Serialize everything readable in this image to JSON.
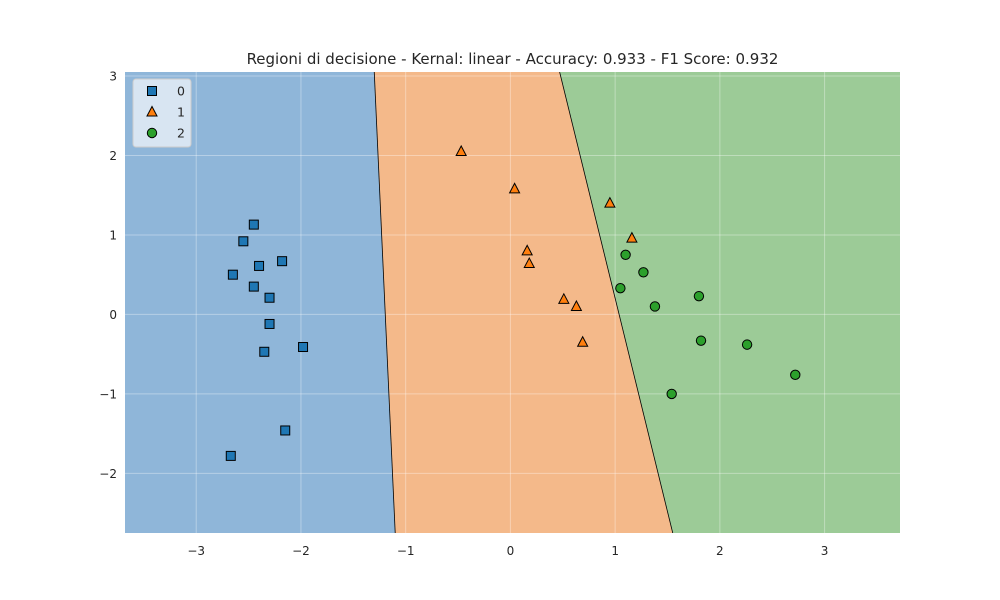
{
  "chart_data": {
    "type": "scatter",
    "title": "Regioni di decisione - Kernal: linear - Accuracy:  0.933 - F1 Score:  0.932",
    "xlabel": "",
    "ylabel": "",
    "xlim": [
      -3.68,
      3.72
    ],
    "ylim": [
      -2.75,
      3.05
    ],
    "x_ticks": [
      -3,
      -2,
      -1,
      0,
      1,
      2,
      3
    ],
    "y_ticks": [
      -2,
      -1,
      0,
      1,
      2,
      3
    ],
    "x_tick_labels": [
      "−3",
      "−2",
      "−1",
      "0",
      "1",
      "2",
      "3"
    ],
    "y_tick_labels": [
      "−2",
      "−1",
      "0",
      "1",
      "2",
      "3"
    ],
    "grid": true,
    "legend_position": "top-left",
    "regions": [
      {
        "class": "0",
        "color": "#8fb6d9",
        "polygon": [
          [
            -3.68,
            -2.75
          ],
          [
            -1.1,
            -2.75
          ],
          [
            -1.3,
            3.05
          ],
          [
            -3.68,
            3.05
          ]
        ]
      },
      {
        "class": "1",
        "color": "#f4b98a",
        "polygon": [
          [
            -1.1,
            -2.75
          ],
          [
            1.55,
            -2.75
          ],
          [
            0.47,
            3.05
          ],
          [
            -1.3,
            3.05
          ]
        ]
      },
      {
        "class": "2",
        "color": "#9ccb97",
        "polygon": [
          [
            1.55,
            -2.75
          ],
          [
            3.72,
            -2.75
          ],
          [
            3.72,
            3.05
          ],
          [
            0.47,
            3.05
          ]
        ]
      }
    ],
    "boundaries": [
      [
        [
          -1.1,
          -2.75
        ],
        [
          -1.3,
          3.05
        ]
      ],
      [
        [
          1.55,
          -2.75
        ],
        [
          0.47,
          3.05
        ]
      ]
    ],
    "series": [
      {
        "name": "0",
        "marker": "square",
        "color": "#1f77b4",
        "points": [
          [
            -2.45,
            1.13
          ],
          [
            -2.55,
            0.92
          ],
          [
            -2.4,
            0.61
          ],
          [
            -2.65,
            0.5
          ],
          [
            -2.18,
            0.67
          ],
          [
            -2.45,
            0.35
          ],
          [
            -2.3,
            0.21
          ],
          [
            -2.3,
            -0.12
          ],
          [
            -2.35,
            -0.47
          ],
          [
            -1.98,
            -0.41
          ],
          [
            -2.15,
            -1.46
          ],
          [
            -2.67,
            -1.78
          ]
        ]
      },
      {
        "name": "1",
        "marker": "triangle",
        "color": "#ff7f0e",
        "points": [
          [
            -0.47,
            2.05
          ],
          [
            0.04,
            1.58
          ],
          [
            0.95,
            1.4
          ],
          [
            1.16,
            0.96
          ],
          [
            0.16,
            0.8
          ],
          [
            0.18,
            0.64
          ],
          [
            0.51,
            0.19
          ],
          [
            0.63,
            0.1
          ],
          [
            0.69,
            -0.35
          ]
        ]
      },
      {
        "name": "2",
        "marker": "circle",
        "color": "#2ca02c",
        "points": [
          [
            1.1,
            0.75
          ],
          [
            1.27,
            0.53
          ],
          [
            1.05,
            0.33
          ],
          [
            1.38,
            0.1
          ],
          [
            1.8,
            0.23
          ],
          [
            1.82,
            -0.33
          ],
          [
            2.26,
            -0.38
          ],
          [
            2.72,
            -0.76
          ],
          [
            1.54,
            -1.0
          ]
        ]
      }
    ]
  }
}
